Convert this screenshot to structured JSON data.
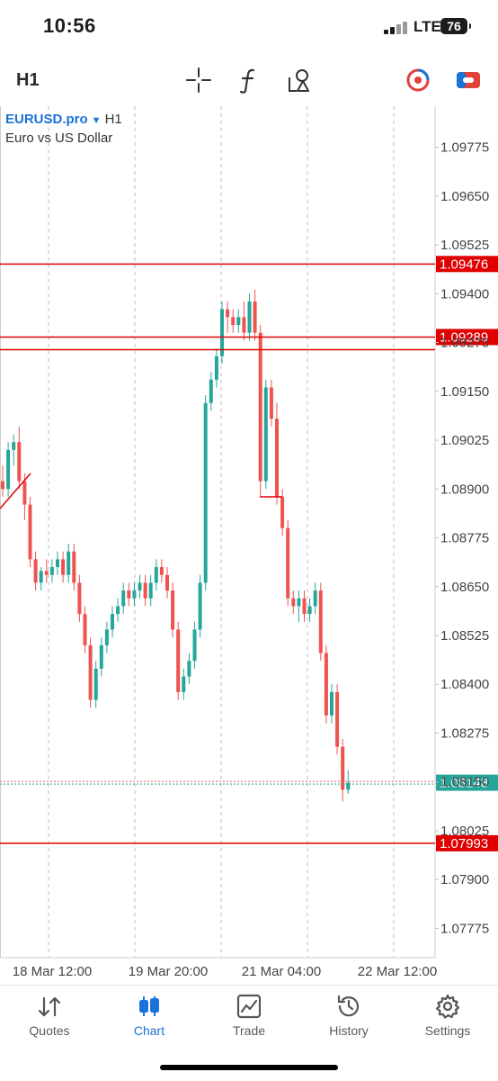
{
  "status_bar": {
    "time": "10:56",
    "network": "LTE",
    "battery": "76"
  },
  "toolbar": {
    "timeframe": "H1",
    "tools": [
      {
        "icon": "crosshair-icon"
      },
      {
        "icon": "function-icon"
      },
      {
        "icon": "objects-icon"
      },
      {
        "icon": "one-click-trading-icon"
      },
      {
        "icon": "trade-toggle-icon"
      }
    ]
  },
  "chart": {
    "symbol": "EURUSD.pro",
    "timeframe": "H1",
    "description": "Euro vs US Dollar",
    "price_ticks": [
      "1.09775",
      "1.09650",
      "1.09525",
      "1.09400",
      "1.09275",
      "1.09150",
      "1.09025",
      "1.08900",
      "1.08775",
      "1.08650",
      "1.08525",
      "1.08400",
      "1.08275",
      "1.08150",
      "1.08025",
      "1.07900",
      "1.07775"
    ],
    "time_labels": [
      "18 Mar 12:00",
      "19 Mar 20:00",
      "21 Mar 04:00",
      "22 Mar 12:00"
    ],
    "levels": [
      {
        "price": "1.09476",
        "value": 1.09476
      },
      {
        "price": "1.09289",
        "value": 1.09289
      },
      {
        "price": "1.07993",
        "value": 1.07993
      }
    ],
    "current_price": {
      "price": "1.08148",
      "value": 1.08148
    },
    "colors": {
      "bull": "#26a69a",
      "bear": "#ef5350",
      "level": "#e00000",
      "bid": "#26a69a"
    }
  },
  "chart_data": {
    "type": "candlestick",
    "symbol": "EURUSD.pro",
    "timeframe": "H1",
    "ylim": [
      1.077,
      1.0988
    ],
    "ohlc": [
      [
        1.0892,
        1.0896,
        1.0888,
        1.089
      ],
      [
        1.089,
        1.0902,
        1.0888,
        1.09
      ],
      [
        1.09,
        1.0904,
        1.0896,
        1.0902
      ],
      [
        1.0902,
        1.0906,
        1.089,
        1.0892
      ],
      [
        1.0892,
        1.0894,
        1.0882,
        1.0886
      ],
      [
        1.0886,
        1.0888,
        1.087,
        1.0872
      ],
      [
        1.0872,
        1.0874,
        1.0864,
        1.0866
      ],
      [
        1.0866,
        1.087,
        1.0864,
        1.0869
      ],
      [
        1.0869,
        1.0872,
        1.0866,
        1.0868
      ],
      [
        1.0868,
        1.0872,
        1.0866,
        1.087
      ],
      [
        1.087,
        1.0874,
        1.0868,
        1.0872
      ],
      [
        1.0872,
        1.0874,
        1.0866,
        1.0868
      ],
      [
        1.0868,
        1.0876,
        1.0866,
        1.0874
      ],
      [
        1.0874,
        1.0876,
        1.0864,
        1.0866
      ],
      [
        1.0866,
        1.0868,
        1.0856,
        1.0858
      ],
      [
        1.0858,
        1.086,
        1.0848,
        1.085
      ],
      [
        1.085,
        1.0852,
        1.0834,
        1.0836
      ],
      [
        1.0836,
        1.0846,
        1.0834,
        1.0844
      ],
      [
        1.0844,
        1.0852,
        1.0842,
        1.085
      ],
      [
        1.085,
        1.0856,
        1.0848,
        1.0854
      ],
      [
        1.0854,
        1.086,
        1.0852,
        1.0858
      ],
      [
        1.0858,
        1.0862,
        1.0856,
        1.086
      ],
      [
        1.086,
        1.0866,
        1.0858,
        1.0864
      ],
      [
        1.0864,
        1.0866,
        1.086,
        1.0862
      ],
      [
        1.0862,
        1.0866,
        1.086,
        1.0864
      ],
      [
        1.0864,
        1.0868,
        1.0862,
        1.0866
      ],
      [
        1.0866,
        1.0868,
        1.086,
        1.0862
      ],
      [
        1.0862,
        1.0868,
        1.086,
        1.0866
      ],
      [
        1.0866,
        1.0872,
        1.0864,
        1.087
      ],
      [
        1.087,
        1.0872,
        1.0866,
        1.0868
      ],
      [
        1.0868,
        1.087,
        1.0862,
        1.0864
      ],
      [
        1.0864,
        1.0866,
        1.0852,
        1.0854
      ],
      [
        1.0854,
        1.0856,
        1.0836,
        1.0838
      ],
      [
        1.0838,
        1.0844,
        1.0836,
        1.0842
      ],
      [
        1.0842,
        1.0848,
        1.084,
        1.0846
      ],
      [
        1.0846,
        1.0856,
        1.0844,
        1.0854
      ],
      [
        1.0854,
        1.0868,
        1.0852,
        1.0866
      ],
      [
        1.0866,
        1.0914,
        1.0864,
        1.0912
      ],
      [
        1.0912,
        1.092,
        1.091,
        1.0918
      ],
      [
        1.0918,
        1.0926,
        1.0916,
        1.0924
      ],
      [
        1.0924,
        1.0938,
        1.0922,
        1.0936
      ],
      [
        1.0936,
        1.0938,
        1.093,
        1.0934
      ],
      [
        1.0934,
        1.0936,
        1.093,
        1.0932
      ],
      [
        1.0932,
        1.0936,
        1.093,
        1.0934
      ],
      [
        1.0934,
        1.0938,
        1.0928,
        1.093
      ],
      [
        1.093,
        1.094,
        1.0928,
        1.0938
      ],
      [
        1.0938,
        1.0941,
        1.0928,
        1.093
      ],
      [
        1.093,
        1.0932,
        1.0888,
        1.0892
      ],
      [
        1.0892,
        1.0918,
        1.089,
        1.0916
      ],
      [
        1.0916,
        1.0918,
        1.0906,
        1.0908
      ],
      [
        1.0908,
        1.0912,
        1.0886,
        1.0888
      ],
      [
        1.0888,
        1.089,
        1.0878,
        1.088
      ],
      [
        1.088,
        1.0882,
        1.086,
        1.0862
      ],
      [
        1.0862,
        1.0864,
        1.0858,
        1.086
      ],
      [
        1.086,
        1.0864,
        1.0856,
        1.0862
      ],
      [
        1.0862,
        1.0864,
        1.0856,
        1.0858
      ],
      [
        1.0858,
        1.0862,
        1.0856,
        1.086
      ],
      [
        1.086,
        1.0866,
        1.0858,
        1.0864
      ],
      [
        1.0864,
        1.0866,
        1.0846,
        1.0848
      ],
      [
        1.0848,
        1.085,
        1.083,
        1.0832
      ],
      [
        1.0832,
        1.084,
        1.083,
        1.0838
      ],
      [
        1.0838,
        1.084,
        1.0822,
        1.0824
      ],
      [
        1.0824,
        1.0826,
        1.081,
        1.0813
      ],
      [
        1.0813,
        1.0818,
        1.0812,
        1.08148
      ]
    ]
  },
  "bottom_nav": {
    "items": [
      {
        "key": "quotes",
        "label": "Quotes",
        "icon": "quotes-icon",
        "active": false
      },
      {
        "key": "chart",
        "label": "Chart",
        "icon": "candlestick-chart-icon",
        "active": true
      },
      {
        "key": "trade",
        "label": "Trade",
        "icon": "trade-icon",
        "active": false
      },
      {
        "key": "history",
        "label": "History",
        "icon": "history-icon",
        "active": false
      },
      {
        "key": "settings",
        "label": "Settings",
        "icon": "gear-icon",
        "active": false
      }
    ]
  }
}
